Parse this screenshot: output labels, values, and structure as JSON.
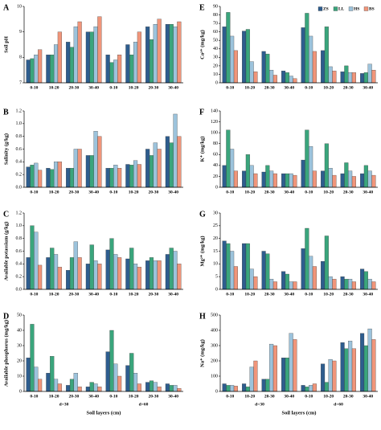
{
  "chart_data": [
    {
      "type": "bar",
      "panel_label": "A",
      "ylabel": "Soil pH",
      "categories": [
        "0-10",
        "10-20",
        "20-30",
        "30-40",
        "0-10",
        "10-20",
        "20-30",
        "30-40"
      ],
      "ylim": [
        7,
        10
      ],
      "yticks": [
        7,
        8,
        9,
        10
      ],
      "series": [
        {
          "color": "#2e5d8e",
          "values": [
            7.9,
            8.1,
            8.6,
            9.0,
            8.1,
            8.5,
            9.2,
            9.3
          ]
        },
        {
          "color": "#3aa57c",
          "values": [
            7.95,
            8.1,
            8.4,
            9.0,
            7.8,
            8.1,
            8.7,
            9.3
          ]
        },
        {
          "color": "#9cc3dc",
          "values": [
            8.1,
            8.5,
            9.2,
            9.2,
            7.9,
            8.6,
            9.3,
            9.2
          ]
        },
        {
          "color": "#f0957a",
          "values": [
            8.3,
            9.0,
            9.4,
            9.6,
            8.1,
            9.0,
            9.5,
            9.4
          ]
        }
      ]
    },
    {
      "type": "bar",
      "panel_label": "B",
      "ylabel": "Salinity (g/kg)",
      "categories": [
        "0-10",
        "10-20",
        "20-30",
        "30-40",
        "0-10",
        "10-20",
        "20-30",
        "30-40"
      ],
      "ylim": [
        0,
        1.2
      ],
      "yticks": [
        {
          "value": 0,
          "label": "0.0"
        },
        0.2,
        0.4,
        0.6,
        0.8,
        {
          "value": 1,
          "label": "1.0"
        },
        1.2
      ],
      "series": [
        {
          "color": "#2e5d8e",
          "values": [
            0.32,
            0.3,
            0.3,
            0.5,
            0.3,
            0.36,
            0.6,
            0.8
          ]
        },
        {
          "color": "#3aa57c",
          "values": [
            0.35,
            0.28,
            0.3,
            0.5,
            0.3,
            0.35,
            0.5,
            0.7
          ]
        },
        {
          "color": "#9cc3dc",
          "values": [
            0.38,
            0.4,
            0.6,
            0.88,
            0.35,
            0.42,
            0.7,
            1.15
          ]
        },
        {
          "color": "#f0957a",
          "values": [
            0.27,
            0.4,
            0.6,
            0.8,
            0.3,
            0.36,
            0.6,
            0.8
          ]
        }
      ]
    },
    {
      "type": "bar",
      "panel_label": "C",
      "ylabel": "Available potassium (g/kg)",
      "categories": [
        "0-10",
        "10-20",
        "20-30",
        "30-40",
        "0-10",
        "10-20",
        "20-30",
        "30-40"
      ],
      "ylim": [
        0,
        1.2
      ],
      "yticks": [
        {
          "value": 0,
          "label": "0.0"
        },
        0.2,
        0.4,
        0.6,
        0.8,
        {
          "value": 1,
          "label": "1.0"
        },
        1.2
      ],
      "series": [
        {
          "color": "#2e5d8e",
          "values": [
            0.5,
            0.5,
            0.3,
            0.4,
            0.62,
            0.48,
            0.45,
            0.55
          ]
        },
        {
          "color": "#3aa57c",
          "values": [
            1.0,
            0.65,
            0.5,
            0.7,
            0.8,
            0.65,
            0.5,
            0.65
          ]
        },
        {
          "color": "#9cc3dc",
          "values": [
            0.9,
            0.55,
            0.75,
            0.45,
            0.55,
            0.4,
            0.45,
            0.6
          ]
        },
        {
          "color": "#f0957a",
          "values": [
            0.38,
            0.35,
            0.5,
            0.4,
            0.5,
            0.35,
            0.45,
            0.4
          ]
        }
      ]
    },
    {
      "type": "bar",
      "panel_label": "D",
      "ylabel": "Available phosphorus (mg/kg)",
      "categories": [
        "0-10",
        "10-20",
        "20-30",
        "30-40",
        "0-10",
        "10-20",
        "20-30",
        "30-40"
      ],
      "groups": [
        "d=30",
        "d=60"
      ],
      "xlabel": "Soil layers (cm)",
      "ylim": [
        0,
        50
      ],
      "yticks": [
        0,
        10,
        20,
        30,
        40,
        50
      ],
      "series": [
        {
          "color": "#2e5d8e",
          "values": [
            22,
            12,
            4,
            3,
            26,
            17,
            6,
            5
          ]
        },
        {
          "color": "#3aa57c",
          "values": [
            44,
            23,
            8,
            6,
            40,
            25,
            7,
            4
          ]
        },
        {
          "color": "#9cc3dc",
          "values": [
            16,
            8,
            12,
            5,
            18,
            12,
            6,
            4
          ]
        },
        {
          "color": "#f0957a",
          "values": [
            8,
            5,
            3,
            3,
            10,
            5,
            3,
            2
          ]
        }
      ]
    },
    {
      "type": "bar",
      "panel_label": "E",
      "ylabel": "Ca²⁺ (mg/kg)",
      "categories": [
        "0-10",
        "10-20",
        "20-30",
        "30-40",
        "0-10",
        "10-20",
        "20-30",
        "30-40"
      ],
      "ylim": [
        0,
        90
      ],
      "yticks": [
        0,
        10,
        20,
        30,
        40,
        50,
        60,
        70,
        80,
        90
      ],
      "series": [
        {
          "name": "ZS",
          "color": "#2e5d8e",
          "values": [
            66,
            61,
            37,
            14,
            65,
            38,
            13,
            11
          ]
        },
        {
          "name": "LL",
          "color": "#3aa57c",
          "values": [
            83,
            63,
            34,
            12,
            82,
            66,
            20,
            12
          ]
        },
        {
          "name": "HS",
          "color": "#9cc3dc",
          "values": [
            55,
            25,
            15,
            8,
            55,
            19,
            12,
            22
          ]
        },
        {
          "name": "BS",
          "color": "#f0957a",
          "values": [
            38,
            13,
            9,
            5,
            37,
            14,
            12,
            15
          ]
        }
      ]
    },
    {
      "type": "bar",
      "panel_label": "F",
      "ylabel": "K⁺ (mg/kg)",
      "categories": [
        "0-10",
        "10-20",
        "20-30",
        "30-40",
        "0-10",
        "10-20",
        "20-30",
        "30-40"
      ],
      "ylim": [
        0,
        140
      ],
      "yticks": [
        0,
        20,
        40,
        60,
        80,
        100,
        120,
        140
      ],
      "series": [
        {
          "color": "#2e5d8e",
          "values": [
            40,
            30,
            28,
            25,
            50,
            30,
            25,
            25
          ]
        },
        {
          "color": "#3aa57c",
          "values": [
            105,
            60,
            40,
            25,
            105,
            80,
            45,
            40
          ]
        },
        {
          "color": "#9cc3dc",
          "values": [
            70,
            40,
            30,
            25,
            75,
            35,
            30,
            30
          ]
        },
        {
          "color": "#f0957a",
          "values": [
            30,
            25,
            25,
            22,
            30,
            22,
            20,
            22
          ]
        }
      ]
    },
    {
      "type": "bar",
      "panel_label": "G",
      "ylabel": "Mg²⁺ (mg/kg)",
      "categories": [
        "0-10",
        "10-20",
        "20-30",
        "30-40",
        "0-10",
        "10-20",
        "20-30",
        "30-40"
      ],
      "ylim": [
        0,
        30
      ],
      "yticks": [
        0,
        5,
        10,
        15,
        20,
        25,
        30
      ],
      "series": [
        {
          "color": "#2e5d8e",
          "values": [
            19,
            18,
            15,
            7,
            16,
            11,
            5,
            8
          ]
        },
        {
          "color": "#3aa57c",
          "values": [
            18,
            18,
            14,
            6,
            24,
            21,
            4,
            7
          ]
        },
        {
          "color": "#9cc3dc",
          "values": [
            15,
            8,
            4,
            3,
            13,
            5,
            4,
            4
          ]
        },
        {
          "color": "#f0957a",
          "values": [
            9,
            5,
            3,
            3,
            9,
            4,
            3,
            3
          ]
        }
      ]
    },
    {
      "type": "bar",
      "panel_label": "H",
      "ylabel": "Na⁺ (mg/kg)",
      "categories": [
        "0-10",
        "10-20",
        "20-30",
        "30-40",
        "0-10",
        "10-20",
        "20-30",
        "30-40"
      ],
      "groups": [
        "d=30",
        "d=60"
      ],
      "xlabel": "Soil layers (cm)",
      "ylim": [
        0,
        500
      ],
      "yticks": [
        0,
        100,
        200,
        300,
        400,
        500
      ],
      "series": [
        {
          "color": "#2e5d8e",
          "values": [
            50,
            50,
            80,
            220,
            40,
            180,
            320,
            380
          ]
        },
        {
          "color": "#3aa57c",
          "values": [
            40,
            30,
            80,
            220,
            30,
            60,
            280,
            300
          ]
        },
        {
          "color": "#9cc3dc",
          "values": [
            40,
            160,
            310,
            380,
            40,
            210,
            330,
            410
          ]
        },
        {
          "color": "#f0957a",
          "values": [
            35,
            200,
            300,
            340,
            50,
            200,
            280,
            340
          ]
        }
      ]
    }
  ]
}
